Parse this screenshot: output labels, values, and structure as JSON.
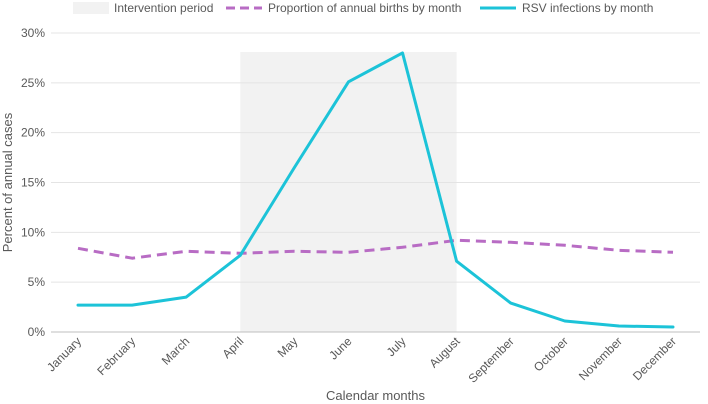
{
  "chart_data": {
    "type": "line",
    "title": "",
    "xlabel": "Calendar months",
    "ylabel": "Percent of annual cases",
    "ylim": [
      0,
      30
    ],
    "yticks": [
      0,
      5,
      10,
      15,
      20,
      25,
      30
    ],
    "ytick_labels": [
      "0%",
      "5%",
      "10%",
      "15%",
      "20%",
      "25%",
      "30%"
    ],
    "grid": true,
    "legend_position": "top",
    "categories": [
      "January",
      "February",
      "March",
      "April",
      "May",
      "June",
      "July",
      "August",
      "September",
      "October",
      "November",
      "December"
    ],
    "intervention_period": {
      "name": "Intervention period",
      "color": "#f2f2f2",
      "start_category": "April",
      "end_category": "August"
    },
    "series": [
      {
        "name": "Proportion of annual births by month",
        "style": "dashed",
        "color": "#b86cc4",
        "values": [
          8.4,
          7.4,
          8.1,
          7.9,
          8.1,
          8.0,
          8.5,
          9.2,
          9.0,
          8.7,
          8.2,
          8.0
        ]
      },
      {
        "name": "RSV infections by month",
        "style": "solid",
        "color": "#1cc3d8",
        "values": [
          2.7,
          2.7,
          3.5,
          7.7,
          16.5,
          25.1,
          28.0,
          7.1,
          2.9,
          1.1,
          0.6,
          0.5
        ]
      }
    ]
  }
}
